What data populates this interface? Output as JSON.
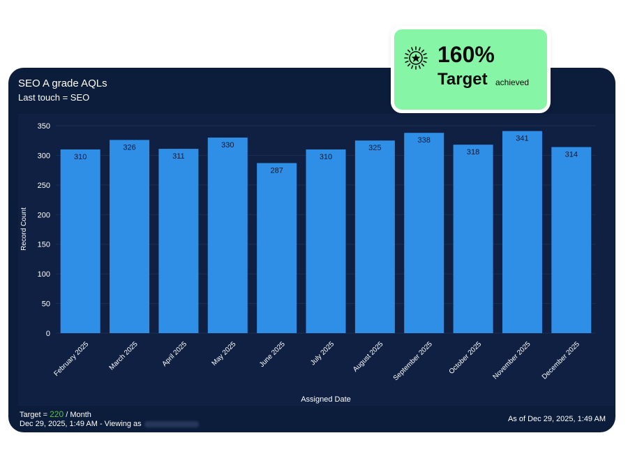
{
  "card": {
    "title": "SEO A grade AQLs",
    "subtitle": "Last touch = SEO"
  },
  "badge": {
    "value": "160%",
    "label": "Target",
    "sublabel": "achieved",
    "icon": "star-badge-icon"
  },
  "footer": {
    "target_prefix": "Target =",
    "target_value": "220",
    "target_suffix": "/ Month",
    "timestamp_left": "Dec 29, 2025, 1:49 AM - Viewing as",
    "timestamp_right": "As of Dec 29, 2025, 1:49 AM"
  },
  "colors": {
    "background": "#0c1c3b",
    "bar": "#2f8fe6",
    "badge": "#86f5a6",
    "target_value": "#52c43b"
  },
  "chart_data": {
    "type": "bar",
    "xlabel": "Assigned Date",
    "ylabel": "Record Count",
    "ylim": [
      0,
      350
    ],
    "yticks": [
      0,
      50,
      100,
      150,
      200,
      250,
      300,
      350
    ],
    "categories": [
      "February 2025",
      "March 2025",
      "April 2025",
      "May 2025",
      "June 2025",
      "July 2025",
      "August 2025",
      "September 2025",
      "October 2025",
      "November 2025",
      "December 2025"
    ],
    "values": [
      310,
      326,
      311,
      330,
      287,
      310,
      325,
      338,
      318,
      341,
      314
    ],
    "data_labels": true,
    "grid": true
  }
}
